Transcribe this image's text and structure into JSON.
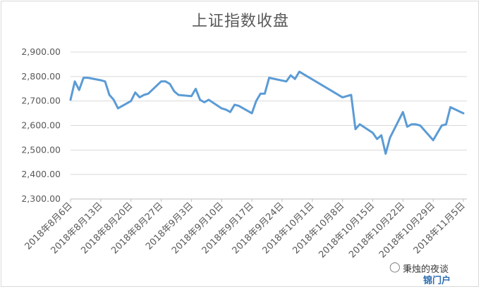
{
  "chart_data": {
    "type": "line",
    "title": "上证指数收盘",
    "xlabel": "",
    "ylabel": "",
    "ylim": [
      2300,
      2900
    ],
    "yticks": [
      "2,300.00",
      "2,400.00",
      "2,500.00",
      "2,600.00",
      "2,700.00",
      "2,800.00",
      "2,900.00"
    ],
    "yticks_values": [
      2300,
      2400,
      2500,
      2600,
      2700,
      2800,
      2900
    ],
    "xticks": [
      "2018年8月6日",
      "2018年8月13日",
      "2018年8月20日",
      "2018年8月27日",
      "2018年9月3日",
      "2018年9月10日",
      "2018年9月17日",
      "2018年9月24日",
      "2018年10月1日",
      "2018年10月8日",
      "2018年10月15日",
      "2018年10月22日",
      "2018年10月29日",
      "2018年11月5日"
    ],
    "xticks_values": [
      "2018-08-06",
      "2018-08-13",
      "2018-08-20",
      "2018-08-27",
      "2018-09-03",
      "2018-09-10",
      "2018-09-17",
      "2018-09-24",
      "2018-10-01",
      "2018-10-08",
      "2018-10-15",
      "2018-10-22",
      "2018-10-29",
      "2018-11-05"
    ],
    "grid": true,
    "series": [
      {
        "color": "#5b9bd5",
        "points": [
          [
            "2018-08-06",
            2705
          ],
          [
            "2018-08-07",
            2780
          ],
          [
            "2018-08-08",
            2745
          ],
          [
            "2018-08-09",
            2795
          ],
          [
            "2018-08-10",
            2795
          ],
          [
            "2018-08-13",
            2785
          ],
          [
            "2018-08-14",
            2780
          ],
          [
            "2018-08-15",
            2725
          ],
          [
            "2018-08-16",
            2705
          ],
          [
            "2018-08-17",
            2670
          ],
          [
            "2018-08-20",
            2700
          ],
          [
            "2018-08-21",
            2735
          ],
          [
            "2018-08-22",
            2715
          ],
          [
            "2018-08-23",
            2725
          ],
          [
            "2018-08-24",
            2730
          ],
          [
            "2018-08-27",
            2780
          ],
          [
            "2018-08-28",
            2780
          ],
          [
            "2018-08-29",
            2770
          ],
          [
            "2018-08-30",
            2740
          ],
          [
            "2018-08-31",
            2725
          ],
          [
            "2018-09-03",
            2720
          ],
          [
            "2018-09-04",
            2750
          ],
          [
            "2018-09-05",
            2705
          ],
          [
            "2018-09-06",
            2695
          ],
          [
            "2018-09-07",
            2705
          ],
          [
            "2018-09-10",
            2670
          ],
          [
            "2018-09-11",
            2665
          ],
          [
            "2018-09-12",
            2655
          ],
          [
            "2018-09-13",
            2685
          ],
          [
            "2018-09-14",
            2680
          ],
          [
            "2018-09-17",
            2650
          ],
          [
            "2018-09-18",
            2700
          ],
          [
            "2018-09-19",
            2730
          ],
          [
            "2018-09-20",
            2730
          ],
          [
            "2018-09-21",
            2795
          ],
          [
            "2018-09-25",
            2780
          ],
          [
            "2018-09-26",
            2805
          ],
          [
            "2018-09-27",
            2790
          ],
          [
            "2018-09-28",
            2820
          ],
          [
            "2018-10-08",
            2715
          ],
          [
            "2018-10-09",
            2720
          ],
          [
            "2018-10-10",
            2725
          ],
          [
            "2018-10-11",
            2585
          ],
          [
            "2018-10-12",
            2605
          ],
          [
            "2018-10-15",
            2570
          ],
          [
            "2018-10-16",
            2545
          ],
          [
            "2018-10-17",
            2560
          ],
          [
            "2018-10-18",
            2485
          ],
          [
            "2018-10-19",
            2550
          ],
          [
            "2018-10-22",
            2655
          ],
          [
            "2018-10-23",
            2595
          ],
          [
            "2018-10-24",
            2605
          ],
          [
            "2018-10-25",
            2605
          ],
          [
            "2018-10-26",
            2600
          ],
          [
            "2018-10-29",
            2540
          ],
          [
            "2018-10-30",
            2570
          ],
          [
            "2018-10-31",
            2600
          ],
          [
            "2018-11-01",
            2605
          ],
          [
            "2018-11-02",
            2675
          ],
          [
            "2018-11-05",
            2650
          ]
        ]
      }
    ]
  },
  "watermark": {
    "caption": "秉烛的夜谈",
    "logo": "锦门户",
    "icon": "speech-bubble-icon"
  }
}
